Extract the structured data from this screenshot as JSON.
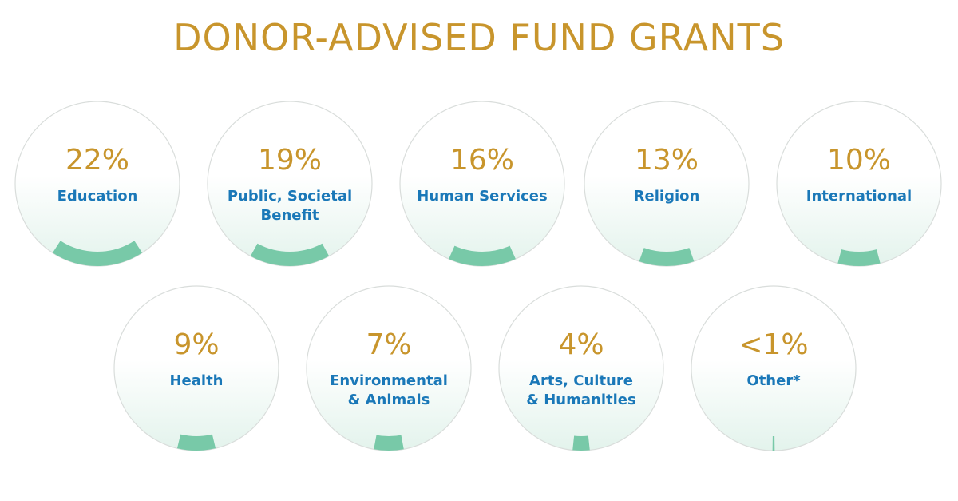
{
  "title": "DONOR-ADVISED FUND GRANTS",
  "colors": {
    "title": "#c8952c",
    "percent": "#c8952c",
    "label": "#1a78b8",
    "arc": "#78c9a8",
    "circle_stroke": "#d9dddb",
    "fill_gradient_bottom": "#e3f3ec"
  },
  "chart_data": {
    "type": "bar",
    "title": "DONOR-ADVISED FUND GRANTS",
    "categories": [
      "Education",
      "Public, Societal Benefit",
      "Human Services",
      "Religion",
      "International",
      "Health",
      "Environmental & Animals",
      "Arts, Culture & Humanities",
      "Other*"
    ],
    "values": [
      22,
      19,
      16,
      13,
      10,
      9,
      7,
      4,
      0.5
    ],
    "unit": "%",
    "items": [
      {
        "percent_label": "22%",
        "value": 22,
        "label_lines": [
          "Education"
        ]
      },
      {
        "percent_label": "19%",
        "value": 19,
        "label_lines": [
          "Public, Societal",
          "Benefit"
        ]
      },
      {
        "percent_label": "16%",
        "value": 16,
        "label_lines": [
          "Human Services"
        ]
      },
      {
        "percent_label": "13%",
        "value": 13,
        "label_lines": [
          "Religion"
        ]
      },
      {
        "percent_label": "10%",
        "value": 10,
        "label_lines": [
          "International"
        ]
      },
      {
        "percent_label": "9%",
        "value": 9,
        "label_lines": [
          "Health"
        ]
      },
      {
        "percent_label": "7%",
        "value": 7,
        "label_lines": [
          "Environmental",
          "& Animals"
        ]
      },
      {
        "percent_label": "4%",
        "value": 4,
        "label_lines": [
          "Arts, Culture",
          "& Humanities"
        ]
      },
      {
        "percent_label": "<1%",
        "value": 0.5,
        "label_lines": [
          "Other*"
        ]
      }
    ]
  }
}
